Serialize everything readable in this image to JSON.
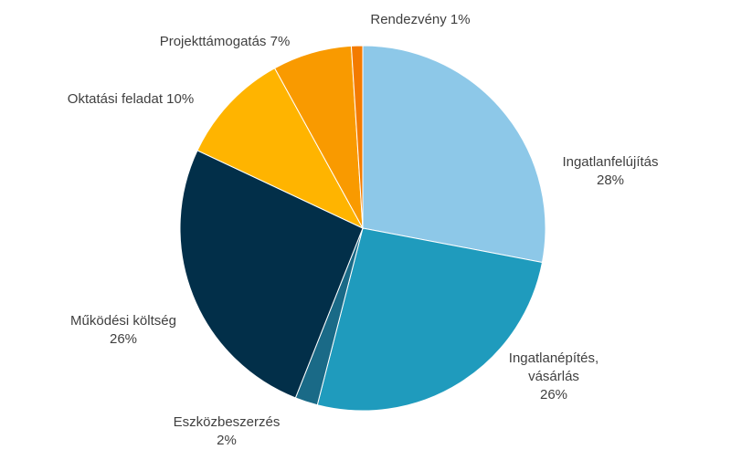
{
  "chart_data": {
    "type": "pie",
    "title": "",
    "start_angle_deg": 0,
    "direction": "clockwise",
    "legend": "none",
    "slices": [
      {
        "name": "Ingatlanfelújítás",
        "value": 28,
        "label_lines": [
          "Ingatlanfelújítás",
          "28%"
        ],
        "color": "#8DC8E8"
      },
      {
        "name": "Ingatlanépítés, vásárlás",
        "value": 26,
        "label_lines": [
          "Ingatlanépítés,",
          "vásárlás",
          "26%"
        ],
        "color": "#1F9BBD"
      },
      {
        "name": "Eszközbeszerzés",
        "value": 2,
        "label_lines": [
          "Eszközbeszerzés",
          "2%"
        ],
        "color": "#1A6A87"
      },
      {
        "name": "Működési költség",
        "value": 26,
        "label_lines": [
          "Működési költség",
          "26%"
        ],
        "color": "#022F49"
      },
      {
        "name": "Oktatási feladat",
        "value": 10,
        "label_lines": [
          "Oktatási feladat 10%"
        ],
        "color": "#FFB400"
      },
      {
        "name": "Projekttámogatás",
        "value": 7,
        "label_lines": [
          "Projekttámogatás 7%"
        ],
        "color": "#F99A00"
      },
      {
        "name": "Rendezvény",
        "value": 1,
        "label_lines": [
          "Rendezvény 1%"
        ],
        "color": "#F37B00"
      }
    ]
  }
}
